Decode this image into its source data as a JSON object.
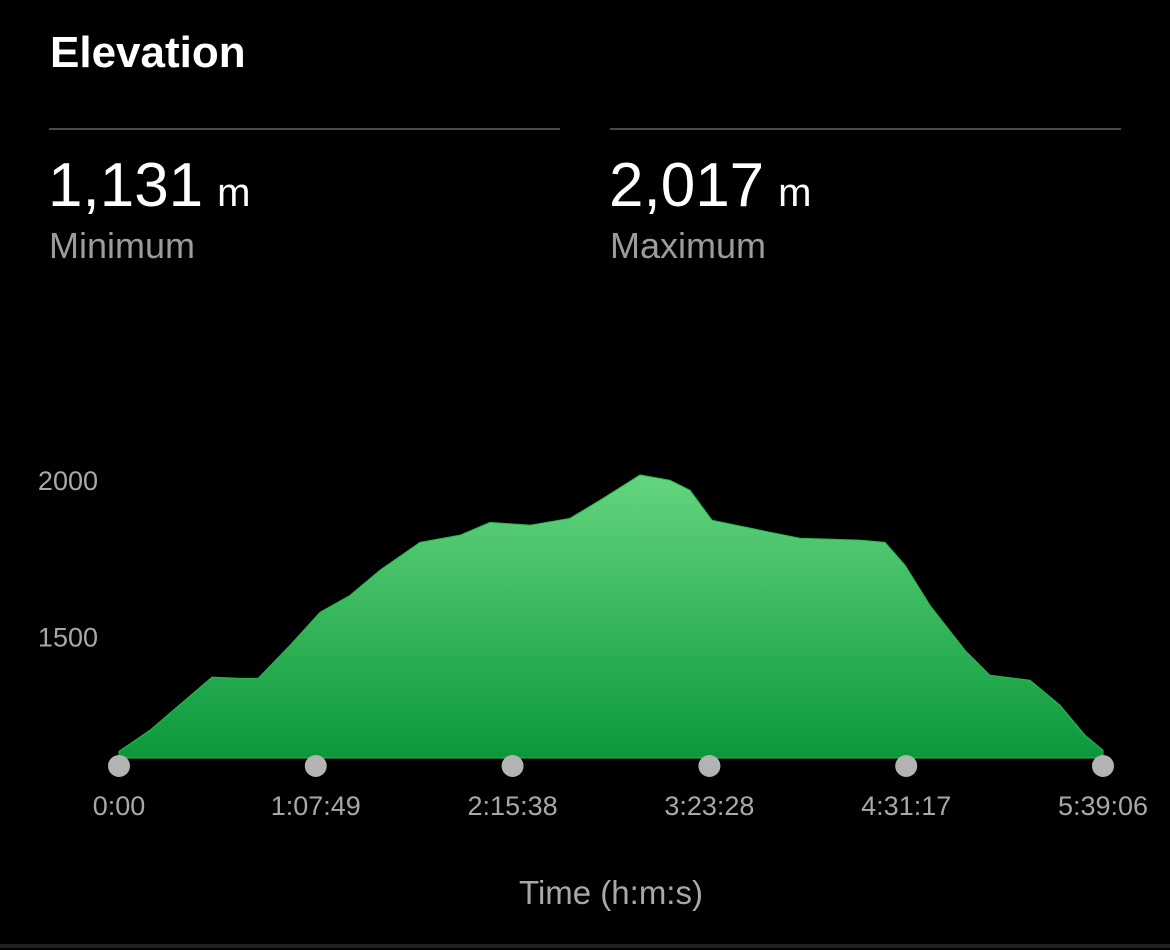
{
  "title": "Elevation",
  "stats": [
    {
      "value": "1,131",
      "unit": "m",
      "label": "Minimum"
    },
    {
      "value": "2,017",
      "unit": "m",
      "label": "Maximum"
    }
  ],
  "chart_data": {
    "type": "area",
    "x_label": "Time (h:m:s)",
    "x": [
      0,
      641,
      1365,
      1923,
      2502,
      2874,
      3536,
      4157,
      4776,
      5397,
      6224,
      7051,
      7671,
      8498,
      9325,
      9946,
      10773,
      11393,
      11807,
      12261,
      13254,
      14081,
      15322,
      15839,
      16252,
      16769,
      17493,
      18010,
      18837,
      19457,
      19974,
      20346
    ],
    "values": [
      1131,
      1199,
      1295,
      1369,
      1365,
      1365,
      1471,
      1577,
      1631,
      1712,
      1801,
      1824,
      1865,
      1856,
      1878,
      1936,
      2017,
      2000,
      1968,
      1872,
      1840,
      1814,
      1808,
      1801,
      1728,
      1599,
      1455,
      1375,
      1359,
      1279,
      1183,
      1135
    ],
    "color": "#2fb552",
    "xlim": [
      0,
      20346
    ],
    "xticks": [
      {
        "value": 0,
        "label": "0:00"
      },
      {
        "value": 4069,
        "label": "1:07:49"
      },
      {
        "value": 8138,
        "label": "2:15:38"
      },
      {
        "value": 12208,
        "label": "3:23:28"
      },
      {
        "value": 16277,
        "label": "4:31:17"
      },
      {
        "value": 20346,
        "label": "5:39:06"
      }
    ],
    "ylim": [
      1110,
      2020
    ],
    "yticks": [
      1500,
      2000
    ],
    "grid": false
  }
}
